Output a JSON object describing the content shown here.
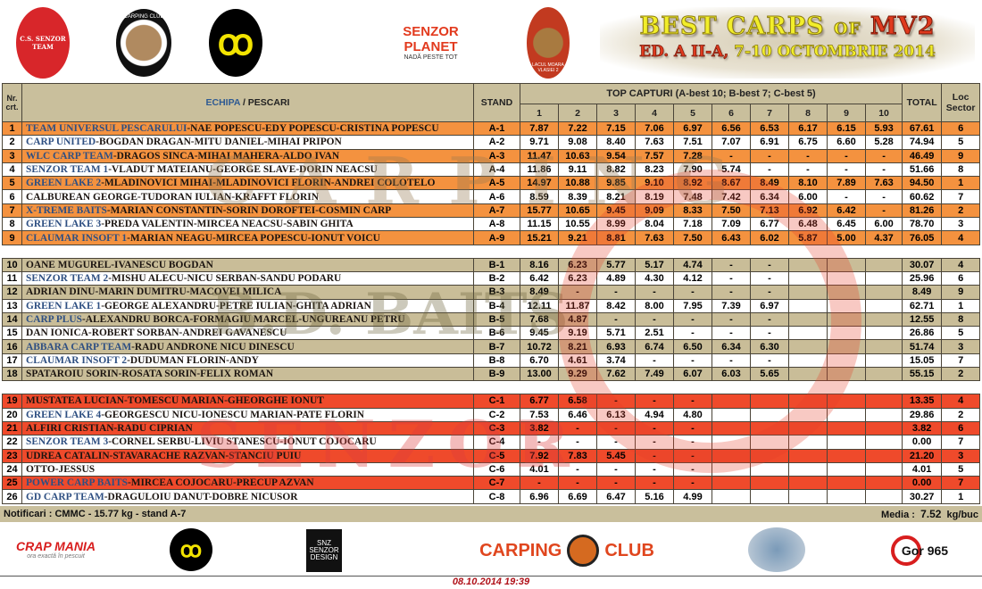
{
  "header": {
    "title_main": "BEST CARPS",
    "title_of": "OF",
    "title_mv": "MV2",
    "title_ed": "ED. A II-A,",
    "title_dates": "7-10 OCTOMBRIE 2014",
    "logos": [
      "C.S. SENZOR TEAM",
      "CARPING CLUB",
      "SENZOR PLANET",
      "NADĂ PESTE TOT",
      "LACUL MOARA VLASIEI 2"
    ]
  },
  "table": {
    "col_nr": "Nr. crt.",
    "col_team": "ECHIPA",
    "col_sep": " / ",
    "col_fishers": "PESCARI",
    "col_stand": "STAND",
    "col_top": "TOP CAPTURI (A-best 10; B-best 7; C-best 5)",
    "col_nums": [
      "1",
      "2",
      "3",
      "4",
      "5",
      "6",
      "7",
      "8",
      "9",
      "10"
    ],
    "col_total": "TOTAL",
    "col_loc": "Loc Sector",
    "sections": [
      {
        "id": "A",
        "color": "#f4923f",
        "rows": [
          {
            "nr": "1",
            "team": "TEAM UNIVERSUL PESCARULUI",
            "names": "-NAE POPESCU-EDY POPESCU-CRISTINA POPESCU",
            "stand": "A-1",
            "v": [
              "7.87",
              "7.22",
              "7.15",
              "7.06",
              "6.97",
              "6.56",
              "6.53",
              "6.17",
              "6.15",
              "5.93"
            ],
            "total": "67.61",
            "loc": "6"
          },
          {
            "nr": "2",
            "team": "CARP UNITED",
            "names": "-BOGDAN DRAGAN-MITU DANIEL-MIHAI PRIPON",
            "stand": "A-2",
            "v": [
              "9.71",
              "9.08",
              "8.40",
              "7.63",
              "7.51",
              "7.07",
              "6.91",
              "6.75",
              "6.60",
              "5.28"
            ],
            "total": "74.94",
            "loc": "5"
          },
          {
            "nr": "3",
            "team": "WLC CARP TEAM",
            "names": "-DRAGOS SINCA-MIHAI MAHERA-ALDO IVAN",
            "stand": "A-3",
            "v": [
              "11.47",
              "10.63",
              "9.54",
              "7.57",
              "7.28",
              "-",
              "-",
              "-",
              "-",
              "-"
            ],
            "total": "46.49",
            "loc": "9"
          },
          {
            "nr": "4",
            "team": "SENZOR TEAM 1",
            "names": "-VLADUT MATEIANU-GEORGE SLAVE-DORIN NEACSU",
            "stand": "A-4",
            "v": [
              "11.86",
              "9.11",
              "8.82",
              "8.23",
              "7.90",
              "5.74",
              "-",
              "-",
              "-",
              "-"
            ],
            "total": "51.66",
            "loc": "8"
          },
          {
            "nr": "5",
            "team": "GREEN LAKE 2",
            "names": "-MLADINOVICI MIHAI-MLADINOVICI FLORIN-ANDREI COLOTELO",
            "stand": "A-5",
            "v": [
              "14.97",
              "10.88",
              "9.85",
              "9.10",
              "8.92",
              "8.67",
              "8.49",
              "8.10",
              "7.89",
              "7.63"
            ],
            "total": "94.50",
            "loc": "1"
          },
          {
            "nr": "6",
            "team": "",
            "names": "CALBUREAN GEORGE-TUDORAN IULIAN-KRAFFT FLORIN",
            "stand": "A-6",
            "v": [
              "8.59",
              "8.39",
              "8.21",
              "8.19",
              "7.48",
              "7.42",
              "6.34",
              "6.00",
              "-",
              "-"
            ],
            "total": "60.62",
            "loc": "7"
          },
          {
            "nr": "7",
            "team": "X-TREME BAITS",
            "names": "-MARIAN CONSTANTIN-SORIN DOROFTEI-COSMIN CARP",
            "stand": "A-7",
            "v": [
              "15.77",
              "10.65",
              "9.45",
              "9.09",
              "8.33",
              "7.50",
              "7.13",
              "6.92",
              "6.42",
              "-"
            ],
            "total": "81.26",
            "loc": "2"
          },
          {
            "nr": "8",
            "team": "GREEN LAKE 3",
            "names": "-PREDA VALENTIN-MIRCEA NEACSU-SABIN GHITA",
            "stand": "A-8",
            "v": [
              "11.15",
              "10.55",
              "8.99",
              "8.04",
              "7.18",
              "7.09",
              "6.77",
              "6.48",
              "6.45",
              "6.00"
            ],
            "total": "78.70",
            "loc": "3"
          },
          {
            "nr": "9",
            "team": "CLAUMAR INSOFT 1",
            "names": "-MARIAN NEAGU-MIRCEA POPESCU-IONUT VOICU",
            "stand": "A-9",
            "v": [
              "15.21",
              "9.21",
              "8.81",
              "7.63",
              "7.50",
              "6.43",
              "6.02",
              "5.87",
              "5.00",
              "4.37"
            ],
            "total": "76.05",
            "loc": "4"
          }
        ]
      },
      {
        "id": "B",
        "color": "#c9bd98",
        "rows": [
          {
            "nr": "10",
            "team": "",
            "names": "OANE MUGUREL-IVANESCU BOGDAN",
            "stand": "B-1",
            "v": [
              "8.16",
              "6.23",
              "5.77",
              "5.17",
              "4.74",
              "-",
              "-",
              "",
              "",
              ""
            ],
            "total": "30.07",
            "loc": "4"
          },
          {
            "nr": "11",
            "team": "SENZOR TEAM 2",
            "names": "-MISHU ALECU-NICU SERBAN-SANDU PODARU",
            "stand": "B-2",
            "v": [
              "6.42",
              "6.23",
              "4.89",
              "4.30",
              "4.12",
              "-",
              "-",
              "",
              "",
              ""
            ],
            "total": "25.96",
            "loc": "6"
          },
          {
            "nr": "12",
            "team": "",
            "names": "ADRIAN DINU-MARIN DUMITRU-MACOVEI  MILICA",
            "stand": "B-3",
            "v": [
              "8.49",
              "-",
              "-",
              "-",
              "-",
              "-",
              "-",
              "",
              "",
              ""
            ],
            "total": "8.49",
            "loc": "9"
          },
          {
            "nr": "13",
            "team": "GREEN LAKE 1",
            "names": "-GEORGE ALEXANDRU-PETRE IULIAN-GHITA ADRIAN",
            "stand": "B-4",
            "v": [
              "12.11",
              "11.87",
              "8.42",
              "8.00",
              "7.95",
              "7.39",
              "6.97",
              "",
              "",
              ""
            ],
            "total": "62.71",
            "loc": "1"
          },
          {
            "nr": "14",
            "team": "CARP PLUS",
            "names": "-ALEXANDRU BORCA-FORMAGIU MARCEL-UNGUREANU PETRU",
            "stand": "B-5",
            "v": [
              "7.68",
              "4.87",
              "-",
              "-",
              "-",
              "-",
              "-",
              "",
              "",
              ""
            ],
            "total": "12.55",
            "loc": "8"
          },
          {
            "nr": "15",
            "team": "",
            "names": "DAN IONICA-ROBERT SORBAN-ANDREI GAVANESCU",
            "stand": "B-6",
            "v": [
              "9.45",
              "9.19",
              "5.71",
              "2.51",
              "-",
              "-",
              "-",
              "",
              "",
              ""
            ],
            "total": "26.86",
            "loc": "5"
          },
          {
            "nr": "16",
            "team": "ABBARA CARP TEAM",
            "names": "-RADU ANDRONE NICU DINESCU",
            "stand": "B-7",
            "v": [
              "10.72",
              "8.21",
              "6.93",
              "6.74",
              "6.50",
              "6.34",
              "6.30",
              "",
              "",
              ""
            ],
            "total": "51.74",
            "loc": "3"
          },
          {
            "nr": "17",
            "team": "CLAUMAR INSOFT 2",
            "names": "-DUDUMAN FLORIN-ANDY",
            "stand": "B-8",
            "v": [
              "6.70",
              "4.61",
              "3.74",
              "-",
              "-",
              "-",
              "-",
              "",
              "",
              ""
            ],
            "total": "15.05",
            "loc": "7"
          },
          {
            "nr": "18",
            "team": "",
            "names": "SPATAROIU SORIN-ROSATA SORIN-FELIX ROMAN",
            "stand": "B-9",
            "v": [
              "13.00",
              "9.29",
              "7.62",
              "7.49",
              "6.07",
              "6.03",
              "5.65",
              "",
              "",
              ""
            ],
            "total": "55.15",
            "loc": "2"
          }
        ]
      },
      {
        "id": "C",
        "color": "#ef4a2b",
        "rows": [
          {
            "nr": "19",
            "team": "",
            "names": "MUSTATEA LUCIAN-TOMESCU MARIAN-GHEORGHE IONUT",
            "stand": "C-1",
            "v": [
              "6.77",
              "6.58",
              "-",
              "-",
              "-",
              "",
              "",
              "",
              "",
              ""
            ],
            "total": "13.35",
            "loc": "4"
          },
          {
            "nr": "20",
            "team": "GREEN LAKE 4",
            "names": "-GEORGESCU NICU-IONESCU MARIAN-PATE FLORIN",
            "stand": "C-2",
            "v": [
              "7.53",
              "6.46",
              "6.13",
              "4.94",
              "4.80",
              "",
              "",
              "",
              "",
              ""
            ],
            "total": "29.86",
            "loc": "2"
          },
          {
            "nr": "21",
            "team": "",
            "names": "ALFIRI CRISTIAN-RADU CIPRIAN",
            "stand": "C-3",
            "v": [
              "3.82",
              "-",
              "-",
              "-",
              "-",
              "",
              "",
              "",
              "",
              ""
            ],
            "total": "3.82",
            "loc": "6"
          },
          {
            "nr": "22",
            "team": "SENZOR TEAM 3",
            "names": "-CORNEL SERBU-LIVIU STANESCU-IONUT COJOCARU",
            "stand": "C-4",
            "v": [
              "-",
              "-",
              "-",
              "-",
              "-",
              "",
              "",
              "",
              "",
              ""
            ],
            "total": "0.00",
            "loc": "7"
          },
          {
            "nr": "23",
            "team": "",
            "names": "UDREA CATALIN-STAVARACHE RAZVAN-STANCIU PUIU",
            "stand": "C-5",
            "v": [
              "7.92",
              "7.83",
              "5.45",
              "-",
              "-",
              "",
              "",
              "",
              "",
              ""
            ],
            "total": "21.20",
            "loc": "3"
          },
          {
            "nr": "24",
            "team": "",
            "names": "OTTO-JESSUS",
            "stand": "C-6",
            "v": [
              "4.01",
              "-",
              "-",
              "-",
              "-",
              "",
              "",
              "",
              "",
              ""
            ],
            "total": "4.01",
            "loc": "5"
          },
          {
            "nr": "25",
            "team": "POWER CARP BAITS",
            "names": "-MIRCEA COJOCARU-PRECUP AZVAN",
            "stand": "C-7",
            "v": [
              "-",
              "-",
              "-",
              "-",
              "-",
              "",
              "",
              "",
              "",
              ""
            ],
            "total": "0.00",
            "loc": "7"
          },
          {
            "nr": "26",
            "team": "GD CARP TEAM",
            "names": "-DRAGULOIU DANUT-DOBRE NICUSOR",
            "stand": "C-8",
            "v": [
              "6.96",
              "6.69",
              "6.47",
              "5.16",
              "4.99",
              "",
              "",
              "",
              "",
              ""
            ],
            "total": "30.27",
            "loc": "1"
          }
        ]
      }
    ]
  },
  "footer": {
    "notice": "Notificari : CMMC -  15.77 kg - stand A-7",
    "media_label": "Media :",
    "media_value": "7.52",
    "media_unit": "kg/buc",
    "logos": [
      "CRAP MANIA",
      "ora exactă în pescuit",
      "SNZ SENZOR DESIGN",
      "CARPING",
      "CLUB",
      "Gor 965"
    ],
    "timestamp": "08.10.2014 19:39"
  }
}
